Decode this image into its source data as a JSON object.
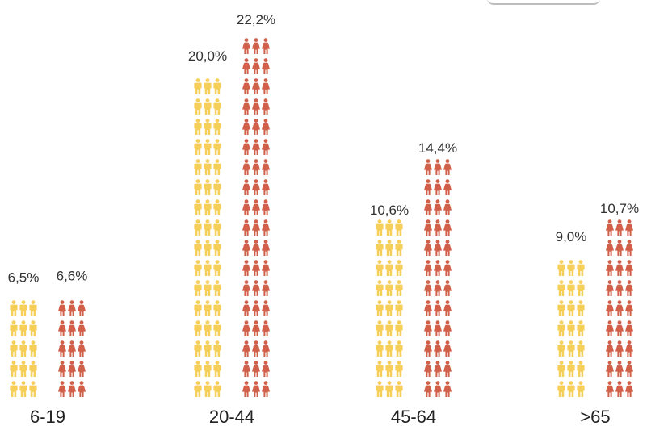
{
  "chart_data": {
    "type": "bar",
    "categories": [
      "6-19",
      "20-44",
      "45-64",
      ">65"
    ],
    "series": [
      {
        "values": [
          6.5,
          20.0,
          10.6,
          9.0
        ],
        "labels": [
          "6,5%",
          "20,0%",
          "10,6%",
          "9,0%"
        ],
        "color": "#F6CF5A",
        "icon": "male-person-icon"
      },
      {
        "values": [
          6.6,
          22.2,
          14.4,
          10.7
        ],
        "labels": [
          "6,6%",
          "22,2%",
          "14,4%",
          "10,7%"
        ],
        "color": "#D1604A",
        "icon": "female-person-icon"
      }
    ],
    "title": "",
    "xlabel": "",
    "ylabel": "",
    "grid": false,
    "legend": "none"
  }
}
